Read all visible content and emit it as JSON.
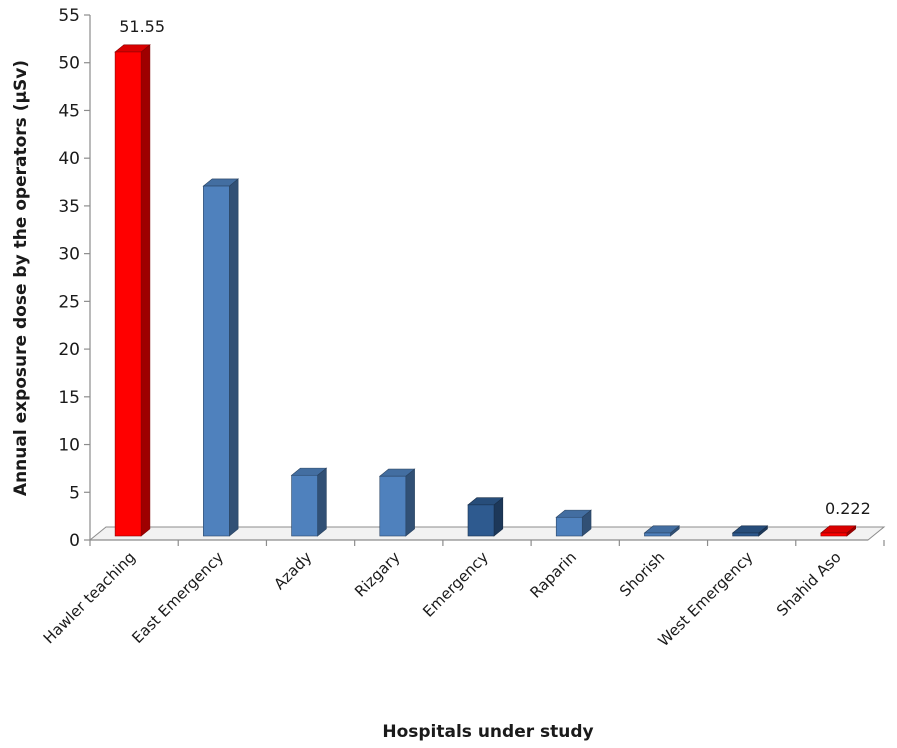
{
  "chart_data": {
    "type": "bar",
    "style": "3d-column",
    "categories": [
      "Hawler teaching",
      "East Emergency",
      "Azady",
      "Rizgary",
      "Emergency",
      "Raparin",
      "Shorish",
      "West Emergency",
      "Shahid Aso"
    ],
    "values": [
      51.55,
      37.5,
      7.2,
      7.1,
      4.1,
      2.8,
      1.0,
      0.7,
      0.222
    ],
    "bar_colors": [
      "#ff0000",
      "#4f81bd",
      "#4f81bd",
      "#4f81bd",
      "#2e5a8f",
      "#4f81bd",
      "#4f81bd",
      "#2e5a8f",
      "#ff0000"
    ],
    "data_labels": [
      {
        "index": 0,
        "text": "51.55"
      },
      {
        "index": 8,
        "text": "0.222"
      }
    ],
    "title": "",
    "xlabel": "Hospitals under study",
    "ylabel": "Annual exposure dose by the operators (µSv)",
    "ylim": [
      0,
      55
    ],
    "yticks": [
      0,
      5,
      10,
      15,
      20,
      25,
      30,
      35,
      40,
      45,
      50,
      55
    ],
    "grid": false,
    "legend": "none"
  }
}
